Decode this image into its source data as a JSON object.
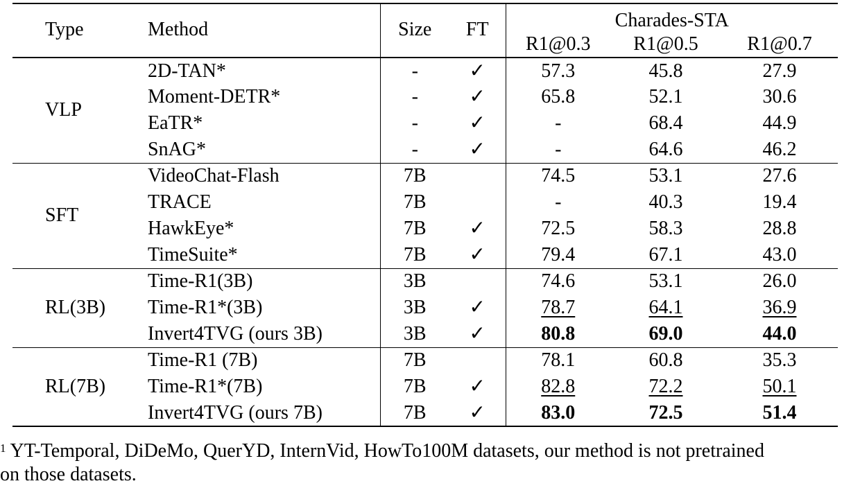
{
  "header": {
    "type": "Type",
    "method": "Method",
    "size": "Size",
    "ft": "FT",
    "dataset": "Charades-STA",
    "metrics": [
      "R1@0.3",
      "R1@0.5",
      "R1@0.7"
    ]
  },
  "check_mark": "✓",
  "groups": [
    {
      "type": "VLP",
      "rows": [
        {
          "method": "2D-TAN*",
          "size": "-",
          "ft": true,
          "values": [
            "57.3",
            "45.8",
            "27.9"
          ],
          "style": [
            "",
            "",
            ""
          ]
        },
        {
          "method": "Moment-DETR*",
          "size": "-",
          "ft": true,
          "values": [
            "65.8",
            "52.1",
            "30.6"
          ],
          "style": [
            "",
            "",
            ""
          ]
        },
        {
          "method": "EaTR*",
          "size": "-",
          "ft": true,
          "values": [
            "-",
            "68.4",
            "44.9"
          ],
          "style": [
            "",
            "",
            ""
          ]
        },
        {
          "method": "SnAG*",
          "size": "-",
          "ft": true,
          "values": [
            "-",
            "64.6",
            "46.2"
          ],
          "style": [
            "",
            "",
            ""
          ]
        }
      ]
    },
    {
      "type": "SFT",
      "rows": [
        {
          "method": "VideoChat-Flash",
          "size": "7B",
          "ft": false,
          "values": [
            "74.5",
            "53.1",
            "27.6"
          ],
          "style": [
            "",
            "",
            ""
          ]
        },
        {
          "method": "TRACE",
          "size": "7B",
          "ft": false,
          "values": [
            "-",
            "40.3",
            "19.4"
          ],
          "style": [
            "",
            "",
            ""
          ]
        },
        {
          "method": "HawkEye*",
          "size": "7B",
          "ft": true,
          "values": [
            "72.5",
            "58.3",
            "28.8"
          ],
          "style": [
            "",
            "",
            ""
          ]
        },
        {
          "method": "TimeSuite*",
          "size": "7B",
          "ft": true,
          "values": [
            "79.4",
            "67.1",
            "43.0"
          ],
          "style": [
            "",
            "",
            ""
          ]
        }
      ]
    },
    {
      "type": "RL(3B)",
      "rows": [
        {
          "method": "Time-R1(3B)",
          "size": "3B",
          "ft": false,
          "values": [
            "74.6",
            "53.1",
            "26.0"
          ],
          "style": [
            "",
            "",
            ""
          ]
        },
        {
          "method": "Time-R1*(3B)",
          "size": "3B",
          "ft": true,
          "values": [
            "78.7",
            "64.1",
            "36.9"
          ],
          "style": [
            "underline",
            "underline",
            "underline"
          ]
        },
        {
          "method": "Invert4TVG (ours 3B)",
          "size": "3B",
          "ft": true,
          "values": [
            "80.8",
            "69.0",
            "44.0"
          ],
          "style": [
            "bold",
            "bold",
            "bold"
          ]
        }
      ]
    },
    {
      "type": "RL(7B)",
      "rows": [
        {
          "method": "Time-R1 (7B)",
          "size": "7B",
          "ft": false,
          "values": [
            "78.1",
            "60.8",
            "35.3"
          ],
          "style": [
            "",
            "",
            ""
          ]
        },
        {
          "method": "Time-R1*(7B)",
          "size": "7B",
          "ft": true,
          "values": [
            "82.8",
            "72.2",
            "50.1"
          ],
          "style": [
            "underline",
            "underline",
            "underline"
          ]
        },
        {
          "method": "Invert4TVG (ours 7B)",
          "size": "7B",
          "ft": true,
          "values": [
            "83.0",
            "72.5",
            "51.4"
          ],
          "style": [
            "bold",
            "bold",
            "bold"
          ]
        }
      ]
    }
  ],
  "footnote": {
    "marker": "1",
    "line1": "YT-Temporal, DiDeMo, QuerYD, InternVid, HowTo100M datasets, our method is not pretrained",
    "line2": "on those datasets."
  }
}
